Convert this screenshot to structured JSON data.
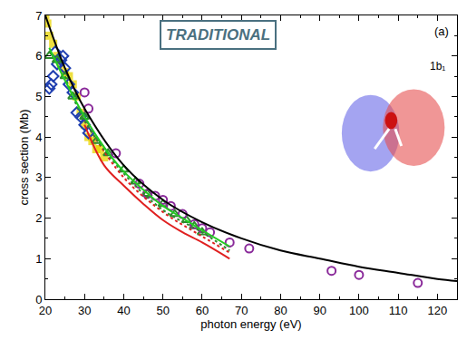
{
  "chart_data": {
    "type": "scatter",
    "x_label": "photon energy (eV)",
    "y_label": "cross section (Mb)",
    "annotations": [
      "TRADITIONAL",
      "(a)",
      "1b₁"
    ],
    "xlim": [
      20,
      125
    ],
    "xticks": [
      20,
      30,
      40,
      50,
      60,
      70,
      80,
      90,
      100,
      110,
      120
    ],
    "ylim": [
      0,
      7
    ],
    "yticks": [
      0,
      1,
      2,
      3,
      4,
      5,
      6,
      7
    ],
    "grid": false,
    "series": [
      {
        "type": "scatter",
        "color": "#e8d400",
        "marker": "square",
        "x": [
          20,
          20.5,
          21,
          22,
          23,
          24,
          25,
          26,
          27,
          28,
          29,
          30,
          31,
          32,
          33,
          34,
          35
        ],
        "values": [
          7.0,
          6.8,
          6.5,
          6.3,
          6.0,
          5.8,
          5.6,
          5.5,
          5.3,
          5.0,
          4.6,
          4.3,
          4.0,
          3.9,
          3.7,
          3.7,
          3.5
        ]
      },
      {
        "type": "scatter",
        "color": "#1f3fb0",
        "marker": "diamond-open",
        "x": [
          21,
          21.5,
          22,
          22.5,
          23,
          24,
          24.5,
          25,
          26,
          27,
          28,
          29,
          30,
          31
        ],
        "values": [
          5.2,
          5.3,
          5.5,
          6.1,
          5.8,
          5.9,
          6.0,
          5.7,
          5.3,
          5.1,
          4.6,
          4.5,
          4.3,
          4.1
        ]
      },
      {
        "type": "scatter",
        "color": "#2e8b2e",
        "marker": "triangle-up-open",
        "x": [
          21,
          23,
          25,
          27,
          30,
          33,
          36,
          40,
          43,
          46,
          50,
          53,
          56,
          58,
          60
        ],
        "values": [
          6.0,
          5.9,
          5.5,
          5.0,
          4.5,
          3.9,
          3.6,
          3.2,
          2.9,
          2.6,
          2.35,
          2.1,
          1.95,
          1.8,
          1.65
        ]
      },
      {
        "type": "scatter",
        "color": "#8a2a9a",
        "marker": "circle-open",
        "x": [
          30,
          31,
          38,
          44,
          46,
          48,
          50,
          52,
          55,
          58,
          60,
          62,
          67,
          72,
          93,
          100,
          115
        ],
        "values": [
          5.1,
          4.7,
          3.6,
          2.85,
          2.6,
          2.55,
          2.45,
          2.3,
          2.1,
          1.85,
          1.75,
          1.65,
          1.4,
          1.25,
          0.7,
          0.6,
          0.4
        ]
      },
      {
        "type": "line",
        "color": "#e02020",
        "line_style": "solid",
        "x": [
          30,
          35,
          40,
          45,
          50,
          55,
          60,
          67
        ],
        "values": [
          4.3,
          3.3,
          2.8,
          2.35,
          1.95,
          1.65,
          1.4,
          1.0
        ]
      },
      {
        "type": "line",
        "color": "#e02020",
        "line_style": "dot",
        "x": [
          30,
          40,
          50,
          60,
          67
        ],
        "values": [
          4.4,
          3.0,
          2.15,
          1.55,
          1.15
        ]
      },
      {
        "type": "line",
        "color": "#2e8b2e",
        "line_style": "dot",
        "x": [
          25,
          30,
          40,
          50,
          60,
          67
        ],
        "values": [
          5.5,
          4.4,
          3.1,
          2.2,
          1.65,
          1.2
        ]
      },
      {
        "type": "line",
        "color": "#22cc22",
        "line_style": "solid",
        "x": [
          21,
          25,
          30,
          35,
          40,
          45,
          50,
          55,
          60,
          67
        ],
        "values": [
          6.2,
          5.4,
          4.5,
          3.75,
          3.15,
          2.7,
          2.3,
          2.0,
          1.7,
          1.3
        ]
      },
      {
        "type": "line",
        "color": "#000000",
        "line_style": "solid",
        "x": [
          20,
          25,
          30,
          40,
          50,
          60,
          70,
          80,
          90,
          100,
          110,
          120,
          125
        ],
        "values": [
          7.0,
          5.7,
          4.7,
          3.3,
          2.45,
          1.9,
          1.5,
          1.2,
          1.0,
          0.8,
          0.65,
          0.5,
          0.45
        ]
      }
    ]
  }
}
